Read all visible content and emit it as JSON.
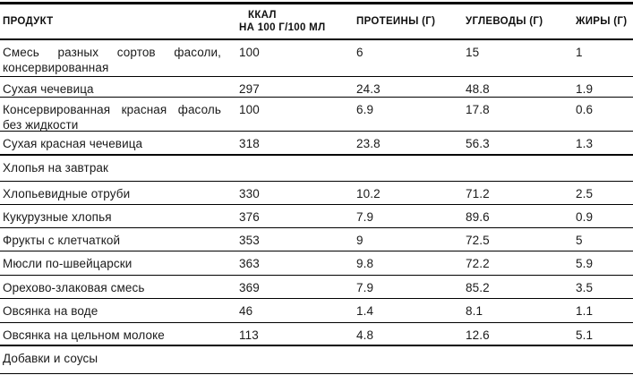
{
  "table": {
    "headers": {
      "product": "ПРОДУКТ",
      "kcal_line1": "ККАЛ",
      "kcal_line2": "НА 100 Г/100 МЛ",
      "protein": "ПРОТЕИНЫ (Г)",
      "carbs": "УГЛЕВОДЫ (Г)",
      "fat": "ЖИРЫ (Г)"
    },
    "rows": [
      {
        "product": "Смесь разных сортов фасоли, консерви­рованная",
        "kcal": "100",
        "protein": "6",
        "carbs": "15",
        "fat": "1"
      },
      {
        "product": "Сухая чечевица",
        "kcal": "297",
        "protein": "24.3",
        "carbs": "48.8",
        "fat": "1.9"
      },
      {
        "product": "Консервированная красная фасоль без жидкости",
        "kcal": "100",
        "protein": "6.9",
        "carbs": "17.8",
        "fat": "0.6"
      },
      {
        "product": "Сухая красная чечевица",
        "kcal": "318",
        "protein": "23.8",
        "carbs": "56.3",
        "fat": "1.3"
      },
      {
        "product": "Хлопья на завтрак",
        "type": "section"
      },
      {
        "product": "Хлопьевидные отруби",
        "kcal": "330",
        "protein": "10.2",
        "carbs": "71.2",
        "fat": "2.5"
      },
      {
        "product": "Кукурузные хлопья",
        "kcal": "376",
        "protein": "7.9",
        "carbs": "89.6",
        "fat": "0.9"
      },
      {
        "product": "Фрукты с клетчаткой",
        "kcal": "353",
        "protein": "9",
        "carbs": "72.5",
        "fat": "5"
      },
      {
        "product": "Мюсли по-швейцарски",
        "kcal": "363",
        "protein": "9.8",
        "carbs": "72.2",
        "fat": "5.9"
      },
      {
        "product": "Орехово-злаковая смесь",
        "kcal": "369",
        "protein": "7.9",
        "carbs": "85.2",
        "fat": "3.5"
      },
      {
        "product": "Овсянка на воде",
        "kcal": "46",
        "protein": "1.4",
        "carbs": "8.1",
        "fat": "1.1"
      },
      {
        "product": "Овсянка на цельном молоке",
        "kcal": "113",
        "protein": "4.8",
        "carbs": "12.6",
        "fat": "5.1"
      },
      {
        "product": "Добавки и соусы",
        "type": "section"
      }
    ],
    "colors": {
      "text": "#1a1a1a",
      "rule": "#000000",
      "background": "#ffffff"
    }
  }
}
